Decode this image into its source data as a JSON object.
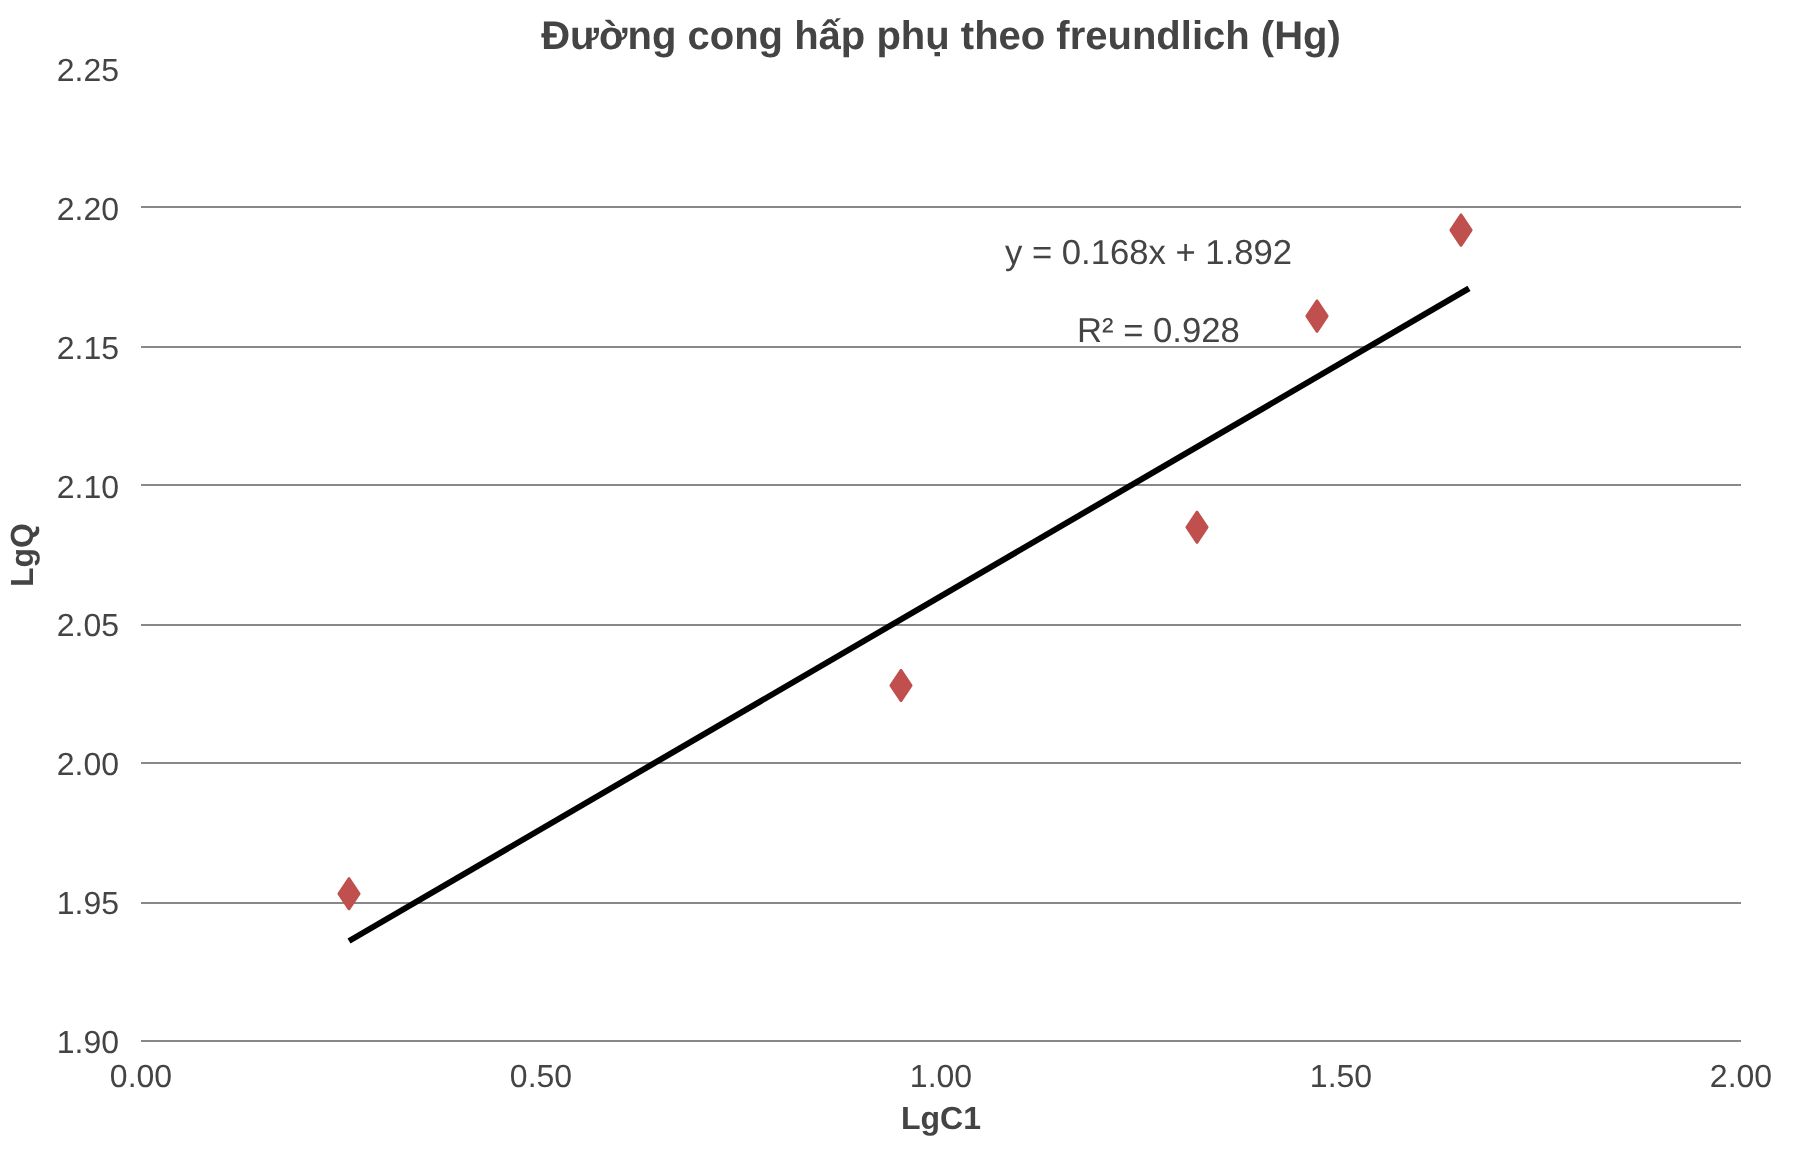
{
  "chart_data": {
    "type": "scatter",
    "title": "Đường cong hấp phụ theo freundlich (Hg)",
    "xlabel": "LgC1",
    "ylabel": "LgQ",
    "series": [
      {
        "color": "#c0504d",
        "x": [
          0.26,
          0.95,
          1.32,
          1.47,
          1.65
        ],
        "values": [
          1.953,
          2.028,
          2.085,
          2.161,
          2.192
        ]
      },
      {
        "type": "line",
        "marker": "none",
        "color": "#000000",
        "x": [
          0.26,
          1.66
        ],
        "values": [
          1.936,
          2.171
        ]
      }
    ],
    "annotations": [
      "y = 0.168x + 1.892",
      "R² = 0.928"
    ],
    "xlim": [
      0,
      2
    ],
    "xticks": [
      {
        "value": 0,
        "label": "0.00"
      },
      {
        "value": 0.5,
        "label": "0.50"
      },
      {
        "value": 1,
        "label": "1.00"
      },
      {
        "value": 1.5,
        "label": "1.50"
      },
      {
        "value": 2,
        "label": "2.00"
      }
    ],
    "ylim": [
      1.9,
      2.25
    ],
    "yticks": [
      {
        "value": 1.9,
        "label": "1.90"
      },
      {
        "value": 1.95,
        "label": "1.95"
      },
      {
        "value": 2,
        "label": "2.00"
      },
      {
        "value": 2.05,
        "label": "2.05"
      },
      {
        "value": 2.1,
        "label": "2.10"
      },
      {
        "value": 2.15,
        "label": "2.15"
      },
      {
        "value": 2.2,
        "label": "2.20"
      },
      {
        "value": 2.25,
        "label": "2.25"
      }
    ],
    "grid": "y",
    "marker": "diamond",
    "line_style": "solid"
  }
}
